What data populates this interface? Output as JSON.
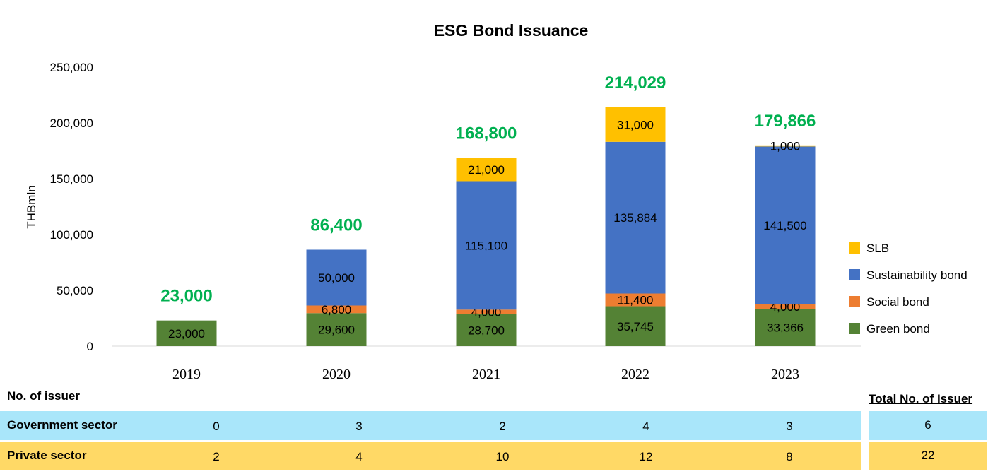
{
  "chart_data": {
    "type": "bar",
    "stacked": true,
    "title": "ESG Bond Issuance",
    "ylabel": "THBmln",
    "xlabel": "",
    "ylim": [
      0,
      250000
    ],
    "yticks": [
      "0",
      "50,000",
      "100,000",
      "150,000",
      "200,000",
      "250,000"
    ],
    "ytick_values": [
      0,
      50000,
      100000,
      150000,
      200000,
      250000
    ],
    "categories": [
      "2019",
      "2020",
      "2021",
      "2022",
      "2023"
    ],
    "series": [
      {
        "name": "Green bond",
        "color": "#548235",
        "values": [
          23000,
          29600,
          28700,
          35745,
          33366
        ],
        "labels": [
          "23,000",
          "29,600",
          "28,700",
          "35,745",
          "33,366"
        ]
      },
      {
        "name": "Social bond",
        "color": "#ED7D31",
        "values": [
          0,
          6800,
          4000,
          11400,
          4000
        ],
        "labels": [
          "",
          "6,800",
          "4,000",
          "11,400",
          "4,000"
        ]
      },
      {
        "name": "Sustainability bond",
        "color": "#4472C4",
        "values": [
          0,
          50000,
          115100,
          135884,
          141500
        ],
        "labels": [
          "",
          "50,000",
          "115,100",
          "135,884",
          "141,500"
        ]
      },
      {
        "name": "SLB",
        "color": "#FFC000",
        "values": [
          0,
          0,
          21000,
          31000,
          1000
        ],
        "labels": [
          "",
          "",
          "21,000",
          "31,000",
          "1,000"
        ]
      }
    ],
    "totals": [
      23000,
      86400,
      168800,
      214029,
      179866
    ],
    "total_labels": [
      "23,000",
      "86,400",
      "168,800",
      "214,029",
      "179,866"
    ],
    "total_color": "#00B050",
    "legend_position": "right",
    "legend_order": [
      "SLB",
      "Sustainability bond",
      "Social bond",
      "Green bond"
    ],
    "grid": false
  },
  "issuer_table": {
    "heading": "No. of issuer",
    "total_heading": "Total No. of Issuer",
    "rows": [
      {
        "label": "Government sector",
        "values": [
          "0",
          "3",
          "2",
          "4",
          "3"
        ],
        "total": "6",
        "color": "#A9E6FA"
      },
      {
        "label": "Private sector",
        "values": [
          "2",
          "4",
          "10",
          "12",
          "8"
        ],
        "total": "22",
        "color": "#FFD966"
      }
    ]
  }
}
